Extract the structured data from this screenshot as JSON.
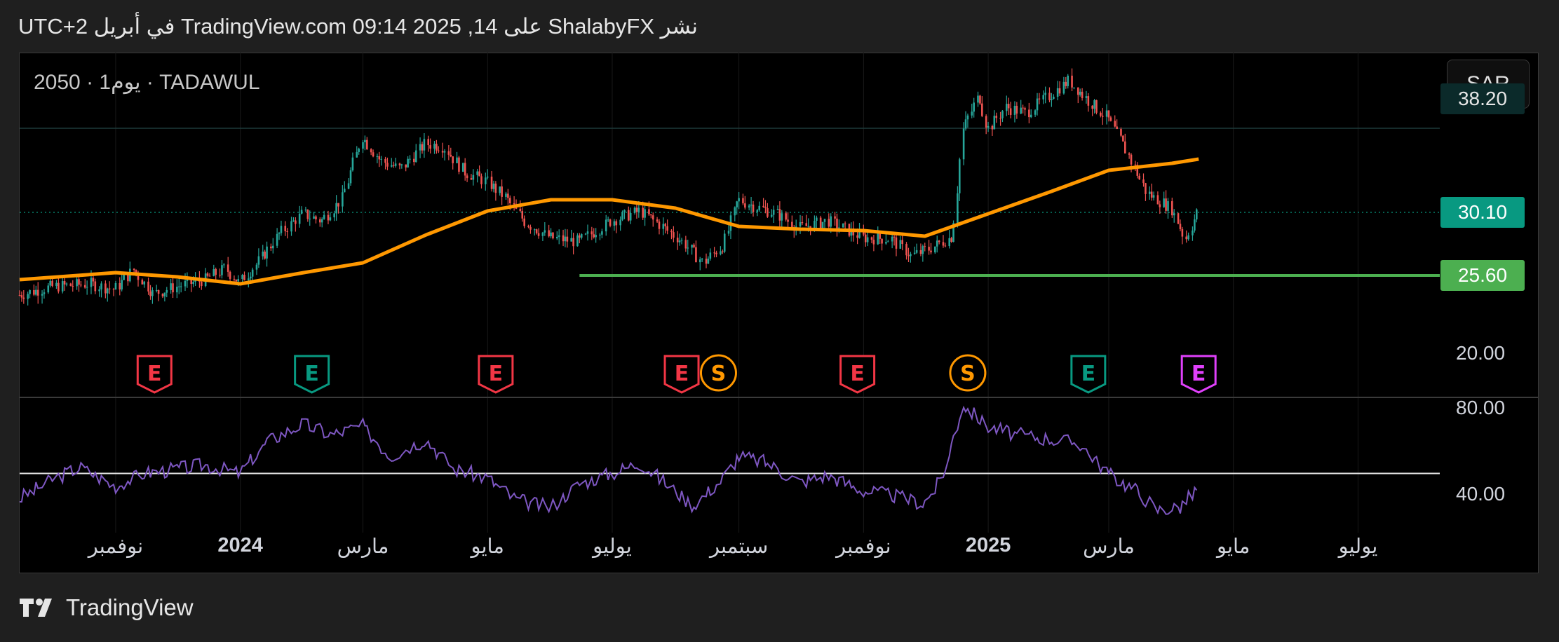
{
  "header": {
    "published": "نشر ShalabyFX على TradingView.com 09:14 2025 ,14 في أبريل UTC+2"
  },
  "symbol": {
    "line": "2050 · 1يوم · TADAWUL"
  },
  "currency": "SAR",
  "price_tags": [
    {
      "label": "38.20",
      "bg": "#0b2a2a",
      "fg": "#e6e6e6"
    },
    {
      "label": "30.10",
      "bg": "#089981",
      "fg": "#ffffff"
    },
    {
      "label": "25.60",
      "bg": "#4caf50",
      "fg": "#ffffff"
    }
  ],
  "footer": {
    "brand": "TradingView"
  },
  "colors": {
    "up": "#26a69a",
    "down": "#ef5350",
    "ma": "#ff9800",
    "support": "#4caf50",
    "rsi": "#7e57c2"
  },
  "chart_data": {
    "type": "line",
    "title": "",
    "price_axis_ticks": [
      "20.00"
    ],
    "rsi_axis_ticks": [
      "80.00",
      "40.00"
    ],
    "x_tick_labels": [
      "نوفمبر",
      "2024",
      "مارس",
      "مايو",
      "يوليو",
      "سبتمبر",
      "نوفمبر",
      "2025",
      "مارس",
      "مايو",
      "يوليو"
    ],
    "x_tick_bold": [
      false,
      true,
      false,
      false,
      false,
      false,
      false,
      true,
      false,
      false,
      false
    ],
    "x_tick_dates": [
      "2023-11-01",
      "2024-01-01",
      "2024-03-01",
      "2024-05-01",
      "2024-07-01",
      "2024-09-01",
      "2024-11-01",
      "2025-01-01",
      "2025-03-01",
      "2025-05-01",
      "2025-07-01"
    ],
    "price_series": [
      [
        "2023-09-15",
        24.2
      ],
      [
        "2023-10-01",
        24.8
      ],
      [
        "2023-10-20",
        25.0
      ],
      [
        "2023-11-01",
        24.6
      ],
      [
        "2023-11-10",
        26.0
      ],
      [
        "2023-11-20",
        24.3
      ],
      [
        "2023-12-01",
        24.8
      ],
      [
        "2023-12-15",
        25.3
      ],
      [
        "2023-12-25",
        26.1
      ],
      [
        "2024-01-01",
        25.1
      ],
      [
        "2024-01-10",
        26.5
      ],
      [
        "2024-01-20",
        28.5
      ],
      [
        "2024-02-01",
        30.0
      ],
      [
        "2024-02-10",
        29.5
      ],
      [
        "2024-02-20",
        31.0
      ],
      [
        "2024-03-01",
        35.5
      ],
      [
        "2024-03-10",
        33.8
      ],
      [
        "2024-03-20",
        33.2
      ],
      [
        "2024-04-01",
        35.0
      ],
      [
        "2024-04-10",
        34.8
      ],
      [
        "2024-04-20",
        33.0
      ],
      [
        "2024-05-01",
        32.3
      ],
      [
        "2024-05-10",
        31.2
      ],
      [
        "2024-05-20",
        29.4
      ],
      [
        "2024-06-01",
        28.3
      ],
      [
        "2024-06-15",
        28.0
      ],
      [
        "2024-07-01",
        29.5
      ],
      [
        "2024-07-15",
        30.2
      ],
      [
        "2024-07-25",
        29.2
      ],
      [
        "2024-08-05",
        28.0
      ],
      [
        "2024-08-15",
        26.5
      ],
      [
        "2024-08-25",
        27.8
      ],
      [
        "2024-09-01",
        31.0
      ],
      [
        "2024-09-10",
        30.5
      ],
      [
        "2024-09-20",
        30.0
      ],
      [
        "2024-10-01",
        29.0
      ],
      [
        "2024-10-15",
        29.5
      ],
      [
        "2024-11-01",
        28.3
      ],
      [
        "2024-11-15",
        28.2
      ],
      [
        "2024-11-25",
        27.0
      ],
      [
        "2024-12-05",
        27.6
      ],
      [
        "2024-12-15",
        28.4
      ],
      [
        "2024-12-20",
        36.0
      ],
      [
        "2024-12-28",
        38.5
      ],
      [
        "2025-01-01",
        36.0
      ],
      [
        "2025-01-10",
        37.6
      ],
      [
        "2025-01-20",
        37.2
      ],
      [
        "2025-02-01",
        38.5
      ],
      [
        "2025-02-10",
        39.5
      ],
      [
        "2025-02-20",
        38.0
      ],
      [
        "2025-03-01",
        36.8
      ],
      [
        "2025-03-10",
        34.5
      ],
      [
        "2025-03-20",
        31.5
      ],
      [
        "2025-04-01",
        30.4
      ],
      [
        "2025-04-08",
        28.2
      ],
      [
        "2025-04-14",
        30.1
      ]
    ],
    "moving_average": [
      [
        "2023-09-15",
        25.3
      ],
      [
        "2023-11-01",
        25.8
      ],
      [
        "2023-12-01",
        25.5
      ],
      [
        "2024-01-01",
        25.0
      ],
      [
        "2024-02-01",
        25.8
      ],
      [
        "2024-03-01",
        26.5
      ],
      [
        "2024-04-01",
        28.5
      ],
      [
        "2024-05-01",
        30.2
      ],
      [
        "2024-06-01",
        31.0
      ],
      [
        "2024-07-01",
        31.0
      ],
      [
        "2024-08-01",
        30.4
      ],
      [
        "2024-09-01",
        29.1
      ],
      [
        "2024-10-01",
        28.9
      ],
      [
        "2024-11-01",
        28.8
      ],
      [
        "2024-12-01",
        28.4
      ],
      [
        "2025-01-01",
        30.0
      ],
      [
        "2025-02-01",
        31.6
      ],
      [
        "2025-03-01",
        33.1
      ],
      [
        "2025-04-01",
        33.6
      ],
      [
        "2025-04-14",
        33.9
      ]
    ],
    "support_level": 25.6,
    "support_start": "2024-06-15",
    "price_ylim": [
      17.0,
      41.5
    ],
    "rsi_series": [
      [
        "2023-09-15",
        38
      ],
      [
        "2023-10-01",
        47
      ],
      [
        "2023-10-15",
        53
      ],
      [
        "2023-11-01",
        44
      ],
      [
        "2023-11-15",
        50
      ],
      [
        "2023-12-01",
        52
      ],
      [
        "2023-12-15",
        54
      ],
      [
        "2024-01-01",
        50
      ],
      [
        "2024-01-15",
        65
      ],
      [
        "2024-02-01",
        73
      ],
      [
        "2024-02-15",
        68
      ],
      [
        "2024-03-01",
        72
      ],
      [
        "2024-03-15",
        58
      ],
      [
        "2024-04-01",
        66
      ],
      [
        "2024-04-15",
        52
      ],
      [
        "2024-05-01",
        48
      ],
      [
        "2024-05-15",
        38
      ],
      [
        "2024-06-01",
        34
      ],
      [
        "2024-06-15",
        45
      ],
      [
        "2024-07-01",
        50
      ],
      [
        "2024-07-15",
        55
      ],
      [
        "2024-08-01",
        42
      ],
      [
        "2024-08-10",
        35
      ],
      [
        "2024-08-25",
        48
      ],
      [
        "2024-09-01",
        58
      ],
      [
        "2024-09-15",
        55
      ],
      [
        "2024-10-01",
        46
      ],
      [
        "2024-10-15",
        49
      ],
      [
        "2024-11-01",
        42
      ],
      [
        "2024-11-15",
        40
      ],
      [
        "2024-12-01",
        36
      ],
      [
        "2024-12-10",
        48
      ],
      [
        "2024-12-20",
        82
      ],
      [
        "2025-01-01",
        72
      ],
      [
        "2025-01-15",
        68
      ],
      [
        "2025-02-01",
        66
      ],
      [
        "2025-02-15",
        64
      ],
      [
        "2025-03-01",
        50
      ],
      [
        "2025-03-15",
        42
      ],
      [
        "2025-03-25",
        33
      ],
      [
        "2025-04-05",
        34
      ],
      [
        "2025-04-14",
        43
      ]
    ],
    "rsi_midline": 50,
    "rsi_ylim": [
      29.0,
      85.0
    ],
    "events": [
      {
        "date": "2023-11-20",
        "label": "E",
        "color": "#f23645"
      },
      {
        "date": "2024-02-05",
        "label": "E",
        "color": "#089981"
      },
      {
        "date": "2024-05-05",
        "label": "E",
        "color": "#f23645"
      },
      {
        "date": "2024-08-04",
        "label": "E",
        "color": "#f23645"
      },
      {
        "date": "2024-08-22",
        "label": "S",
        "color": "#ff9800"
      },
      {
        "date": "2024-10-29",
        "label": "E",
        "color": "#f23645"
      },
      {
        "date": "2024-12-22",
        "label": "S",
        "color": "#ff9800"
      },
      {
        "date": "2025-02-19",
        "label": "E",
        "color": "#089981"
      },
      {
        "date": "2025-04-14",
        "label": "E",
        "color": "#e040fb"
      }
    ]
  }
}
